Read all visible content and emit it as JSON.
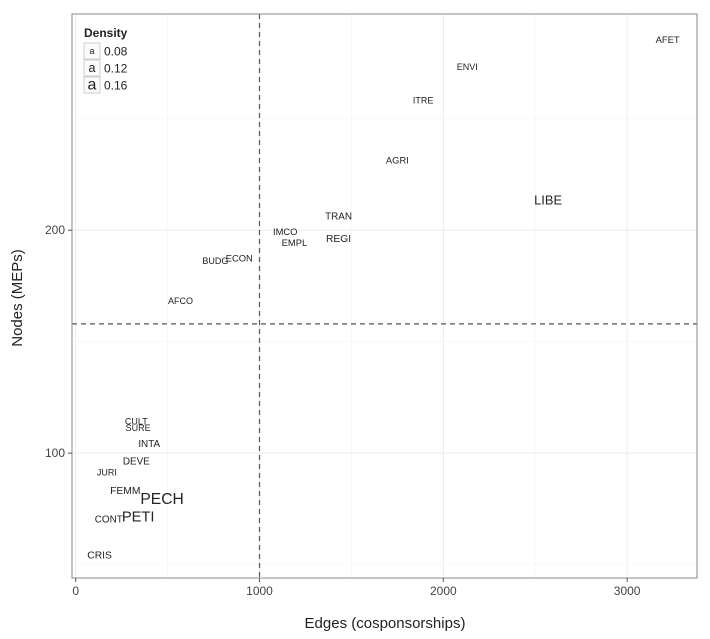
{
  "chart_data": {
    "type": "scatter",
    "title": "",
    "xlabel": "Edges (cosponsorships)",
    "ylabel": "Nodes (MEPs)",
    "xlim": [
      -20,
      3380
    ],
    "ylim": [
      44,
      297
    ],
    "x_ticks": [
      0,
      1000,
      2000,
      3000
    ],
    "x_tick_labels": [
      "0",
      "1000",
      "2000",
      "3000"
    ],
    "y_ticks": [
      100,
      200
    ],
    "y_tick_labels": [
      "100",
      "200"
    ],
    "reference_lines": {
      "x": 1000,
      "y": 158
    },
    "grid": true,
    "legend": {
      "title": "Density",
      "position": "top-left",
      "key_glyph": "a",
      "entries": [
        {
          "label": "0.08",
          "value": 0.08
        },
        {
          "label": "0.12",
          "value": 0.12
        },
        {
          "label": "0.16",
          "value": 0.16
        }
      ]
    },
    "points": [
      {
        "label": "AFET",
        "x": 3220,
        "y": 285,
        "density": 0.085
      },
      {
        "label": "ENVI",
        "x": 2130,
        "y": 273,
        "density": 0.08
      },
      {
        "label": "ITRE",
        "x": 1890,
        "y": 258,
        "density": 0.08
      },
      {
        "label": "AGRI",
        "x": 1750,
        "y": 231,
        "density": 0.085
      },
      {
        "label": "LIBE",
        "x": 2570,
        "y": 213,
        "density": 0.125
      },
      {
        "label": "TRAN",
        "x": 1430,
        "y": 206,
        "density": 0.09
      },
      {
        "label": "REGI",
        "x": 1430,
        "y": 196,
        "density": 0.095
      },
      {
        "label": "IMCO",
        "x": 1140,
        "y": 199,
        "density": 0.085
      },
      {
        "label": "EMPL",
        "x": 1190,
        "y": 194,
        "density": 0.085
      },
      {
        "label": "ECON",
        "x": 890,
        "y": 187,
        "density": 0.085
      },
      {
        "label": "BUDG",
        "x": 760,
        "y": 186,
        "density": 0.08
      },
      {
        "label": "AFCO",
        "x": 570,
        "y": 168,
        "density": 0.08
      },
      {
        "label": "CULT",
        "x": 330,
        "y": 114,
        "density": 0.08
      },
      {
        "label": "SURE",
        "x": 340,
        "y": 111,
        "density": 0.08
      },
      {
        "label": "INTA",
        "x": 400,
        "y": 104,
        "density": 0.09
      },
      {
        "label": "DEVE",
        "x": 330,
        "y": 96,
        "density": 0.09
      },
      {
        "label": "JURI",
        "x": 170,
        "y": 91,
        "density": 0.08
      },
      {
        "label": "FEMM",
        "x": 270,
        "y": 83,
        "density": 0.095
      },
      {
        "label": "PECH",
        "x": 470,
        "y": 79,
        "density": 0.155
      },
      {
        "label": "PETI",
        "x": 340,
        "y": 71,
        "density": 0.145
      },
      {
        "label": "CONT",
        "x": 180,
        "y": 70,
        "density": 0.09
      },
      {
        "label": "CRIS",
        "x": 130,
        "y": 54,
        "density": 0.095
      }
    ]
  }
}
